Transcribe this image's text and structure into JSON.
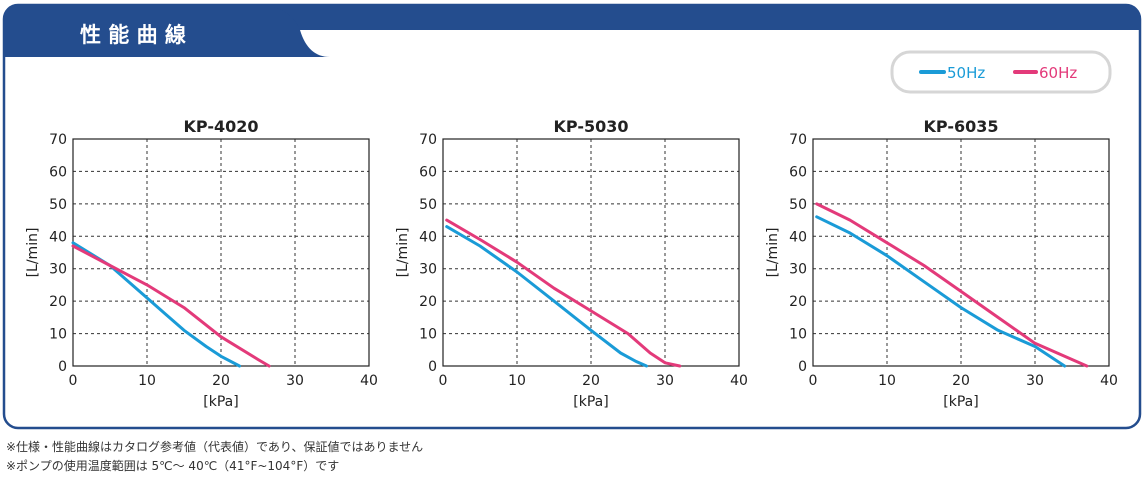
{
  "header": {
    "title": "性 能 曲 線"
  },
  "legend": [
    {
      "label": "50Hz",
      "color": "#1a9bd7"
    },
    {
      "label": "60Hz",
      "color": "#e33a7a"
    }
  ],
  "colors": {
    "frame_blue": "#244d8e",
    "series_50hz": "#1a9bd7",
    "series_60hz": "#e33a7a"
  },
  "chart_data": [
    {
      "type": "line",
      "title": "KP-4020",
      "xlabel": "[kPa]",
      "ylabel": "[L/min]",
      "xlim": [
        0,
        40
      ],
      "ylim": [
        0,
        70
      ],
      "xticks": [
        "0",
        "10",
        "20",
        "30",
        "40"
      ],
      "yticks": [
        "0",
        "10",
        "20",
        "30",
        "40",
        "50",
        "60",
        "70"
      ],
      "grid": true,
      "series": [
        {
          "name": "50Hz",
          "points": [
            [
              0,
              38
            ],
            [
              5,
              31
            ],
            [
              10,
              21
            ],
            [
              12.5,
              16
            ],
            [
              15,
              11
            ],
            [
              18,
              6
            ],
            [
              20,
              3
            ],
            [
              22.5,
              0
            ]
          ]
        },
        {
          "name": "60Hz",
          "points": [
            [
              0,
              37
            ],
            [
              5,
              31
            ],
            [
              10,
              25
            ],
            [
              15,
              18
            ],
            [
              20,
              9
            ],
            [
              25,
              2
            ],
            [
              26.5,
              0
            ]
          ]
        }
      ]
    },
    {
      "type": "line",
      "title": "KP-5030",
      "xlabel": "[kPa]",
      "ylabel": "[L/min]",
      "xlim": [
        0,
        40
      ],
      "ylim": [
        0,
        70
      ],
      "xticks": [
        "0",
        "10",
        "20",
        "30",
        "40"
      ],
      "yticks": [
        "0",
        "10",
        "20",
        "30",
        "40",
        "50",
        "60",
        "70"
      ],
      "grid": true,
      "series": [
        {
          "name": "50Hz",
          "points": [
            [
              0.5,
              43
            ],
            [
              5,
              37
            ],
            [
              10,
              29
            ],
            [
              15,
              20
            ],
            [
              20,
              11
            ],
            [
              24,
              4
            ],
            [
              26,
              1.5
            ],
            [
              27.5,
              0
            ]
          ]
        },
        {
          "name": "60Hz",
          "points": [
            [
              0.5,
              45
            ],
            [
              5,
              39
            ],
            [
              10,
              32
            ],
            [
              15,
              24
            ],
            [
              20,
              17
            ],
            [
              25,
              10
            ],
            [
              28,
              4
            ],
            [
              30,
              1
            ],
            [
              32,
              0
            ]
          ]
        }
      ]
    },
    {
      "type": "line",
      "title": "KP-6035",
      "xlabel": "[kPa]",
      "ylabel": "[L/min]",
      "xlim": [
        0,
        40
      ],
      "ylim": [
        0,
        70
      ],
      "xticks": [
        "0",
        "10",
        "20",
        "30",
        "40"
      ],
      "yticks": [
        "0",
        "10",
        "20",
        "30",
        "40",
        "50",
        "60",
        "70"
      ],
      "grid": true,
      "series": [
        {
          "name": "50Hz",
          "points": [
            [
              0.5,
              46
            ],
            [
              5,
              41
            ],
            [
              10,
              34
            ],
            [
              15,
              26
            ],
            [
              20,
              18
            ],
            [
              25,
              11
            ],
            [
              30,
              6
            ],
            [
              34,
              0
            ]
          ]
        },
        {
          "name": "60Hz",
          "points": [
            [
              0.5,
              50
            ],
            [
              5,
              45
            ],
            [
              10,
              38
            ],
            [
              15,
              31
            ],
            [
              20,
              23
            ],
            [
              25,
              15
            ],
            [
              30,
              7
            ],
            [
              35,
              2
            ],
            [
              37,
              0
            ]
          ]
        }
      ]
    }
  ],
  "notes": [
    "※仕様・性能曲線はカタログ参考値（代表値）であり、保証値ではありません",
    "※ポンプの使用温度範囲は 5℃～ 40℃（41°F~104°F）です"
  ]
}
